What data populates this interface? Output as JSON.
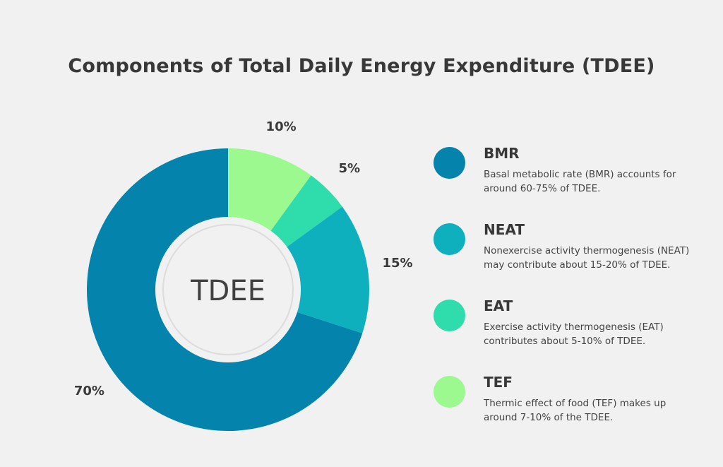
{
  "title": "Components of Total Daily Energy Expenditure (TDEE)",
  "chart_data": {
    "type": "pie",
    "variant": "donut",
    "center_label": "TDEE",
    "slices": [
      {
        "label": "TEF",
        "value": 10,
        "display": "10%",
        "color": "#9cf98f"
      },
      {
        "label": "EAT",
        "value": 5,
        "display": "5%",
        "color": "#2fdcab"
      },
      {
        "label": "NEAT",
        "value": 15,
        "display": "15%",
        "color": "#0fb0bd"
      },
      {
        "label": "BMR",
        "value": 70,
        "display": "70%",
        "color": "#0484ac"
      }
    ]
  },
  "legend": [
    {
      "name": "BMR",
      "color": "#0484ac",
      "description": "Basal metabolic rate (BMR) accounts for around 60-75% of TDEE."
    },
    {
      "name": "NEAT",
      "color": "#0fb0bd",
      "description": "Nonexercise activity thermogenesis (NEAT) may contribute about 15-20% of TDEE."
    },
    {
      "name": "EAT",
      "color": "#2fdcab",
      "description": "Exercise activity thermogenesis (EAT) contributes about 5-10% of TDEE."
    },
    {
      "name": "TEF",
      "color": "#9cf98f",
      "description": "Thermic effect of food (TEF) makes up around 7-10% of the TDEE."
    }
  ]
}
